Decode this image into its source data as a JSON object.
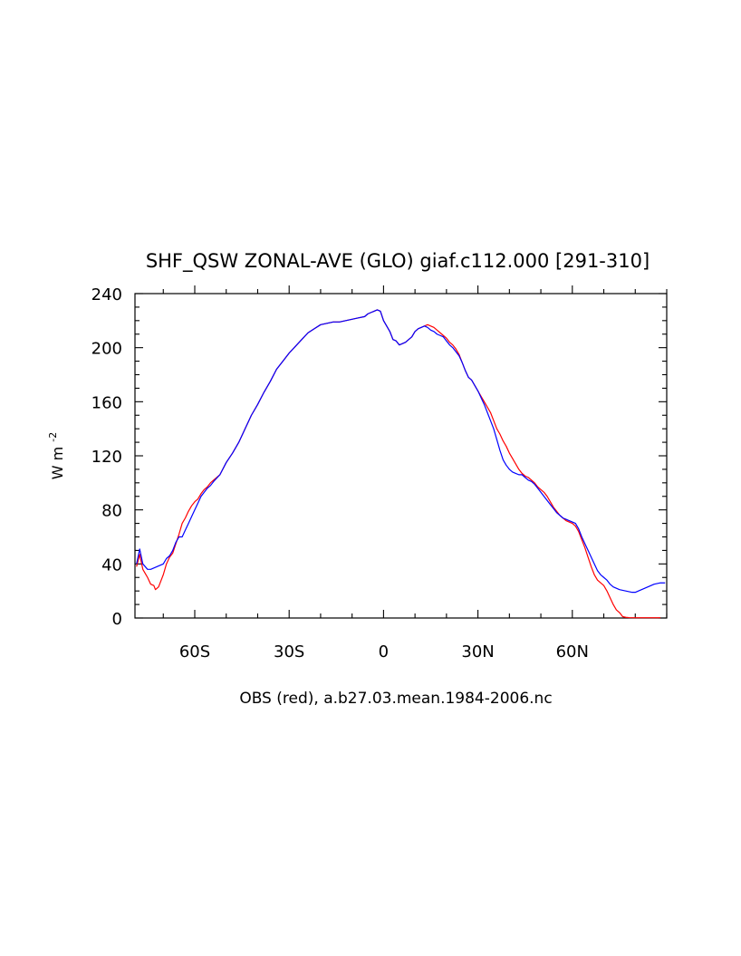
{
  "chart_data": {
    "type": "line",
    "title": "SHF_QSW ZONAL-AVE (GLO) giaf.c112.000 [291-310]",
    "xlabel": "OBS (red), a.b27.03.mean.1984-2006.nc",
    "ylabel": "W m",
    "ylabel_superscript": "-2",
    "xlim": [
      -79,
      90
    ],
    "ylim": [
      0,
      240
    ],
    "x_ticks": [
      {
        "value": -60,
        "label": "60S"
      },
      {
        "value": -30,
        "label": "30S"
      },
      {
        "value": 0,
        "label": "0"
      },
      {
        "value": 30,
        "label": "30N"
      },
      {
        "value": 60,
        "label": "60N"
      }
    ],
    "x_minor_step": 10,
    "y_ticks": [
      0,
      40,
      80,
      120,
      160,
      200,
      240
    ],
    "y_minor_step": 10,
    "grid": false,
    "legend": "none",
    "series": [
      {
        "color": "#ff0000",
        "points": [
          [
            -78.5,
            38
          ],
          [
            -77.5,
            47
          ],
          [
            -76.5,
            36
          ],
          [
            -75,
            30
          ],
          [
            -74,
            25
          ],
          [
            -73,
            24
          ],
          [
            -72.5,
            21
          ],
          [
            -71.5,
            23
          ],
          [
            -70,
            32
          ],
          [
            -69,
            40
          ],
          [
            -68,
            45
          ],
          [
            -67,
            48
          ],
          [
            -66,
            55
          ],
          [
            -65,
            62
          ],
          [
            -64,
            70
          ],
          [
            -63,
            74
          ],
          [
            -62,
            79
          ],
          [
            -61,
            83
          ],
          [
            -60,
            86
          ],
          [
            -59,
            88
          ],
          [
            -58,
            92
          ],
          [
            -57,
            95
          ],
          [
            -56,
            97
          ],
          [
            -55,
            100
          ],
          [
            -54,
            102
          ],
          [
            -52,
            106
          ],
          [
            -50,
            115
          ],
          [
            -48,
            122
          ],
          [
            -46,
            130
          ],
          [
            -44,
            140
          ],
          [
            -42,
            150
          ],
          [
            -40,
            158
          ],
          [
            -38,
            167
          ],
          [
            -36,
            175
          ],
          [
            -34,
            184
          ],
          [
            -32,
            190
          ],
          [
            -30,
            196
          ],
          [
            -28,
            201
          ],
          [
            -26,
            206
          ],
          [
            -24,
            211
          ],
          [
            -22,
            214
          ],
          [
            -20,
            217
          ],
          [
            -18,
            218
          ],
          [
            -16,
            219
          ],
          [
            -14,
            219
          ],
          [
            -12,
            220
          ],
          [
            -10,
            221
          ],
          [
            -8,
            222
          ],
          [
            -6,
            223
          ],
          [
            -5,
            225
          ],
          [
            -4,
            226
          ],
          [
            -3,
            227
          ],
          [
            -2,
            228
          ],
          [
            -1,
            227
          ],
          [
            0,
            220
          ],
          [
            1,
            216
          ],
          [
            2,
            212
          ],
          [
            3,
            206
          ],
          [
            4,
            205
          ],
          [
            5,
            202
          ],
          [
            6,
            203
          ],
          [
            7,
            204
          ],
          [
            8,
            206
          ],
          [
            9,
            208
          ],
          [
            10,
            212
          ],
          [
            11,
            214
          ],
          [
            12,
            215
          ],
          [
            13,
            216
          ],
          [
            14,
            217
          ],
          [
            15,
            216
          ],
          [
            16,
            215
          ],
          [
            17,
            213
          ],
          [
            18,
            211
          ],
          [
            19,
            209
          ],
          [
            20,
            207
          ],
          [
            21,
            204
          ],
          [
            22,
            202
          ],
          [
            23,
            199
          ],
          [
            24,
            195
          ],
          [
            25,
            189
          ],
          [
            26,
            183
          ],
          [
            27,
            178
          ],
          [
            28,
            176
          ],
          [
            29,
            172
          ],
          [
            30,
            168
          ],
          [
            31,
            164
          ],
          [
            32,
            160
          ],
          [
            33,
            156
          ],
          [
            34,
            152
          ],
          [
            35,
            146
          ],
          [
            36,
            140
          ],
          [
            37,
            136
          ],
          [
            38,
            131
          ],
          [
            39,
            127
          ],
          [
            40,
            122
          ],
          [
            41,
            118
          ],
          [
            42,
            114
          ],
          [
            43,
            110
          ],
          [
            44,
            107
          ],
          [
            45,
            105
          ],
          [
            46,
            104
          ],
          [
            47,
            102
          ],
          [
            48,
            100
          ],
          [
            49,
            97
          ],
          [
            50,
            95
          ],
          [
            51,
            93
          ],
          [
            52,
            90
          ],
          [
            53,
            86
          ],
          [
            54,
            82
          ],
          [
            55,
            79
          ],
          [
            56,
            76
          ],
          [
            57,
            74
          ],
          [
            58,
            72
          ],
          [
            59,
            71
          ],
          [
            60,
            70
          ],
          [
            61,
            68
          ],
          [
            62,
            64
          ],
          [
            63,
            58
          ],
          [
            64,
            52
          ],
          [
            65,
            45
          ],
          [
            66,
            38
          ],
          [
            67,
            32
          ],
          [
            68,
            28
          ],
          [
            69,
            26
          ],
          [
            70,
            24
          ],
          [
            71,
            20
          ],
          [
            72,
            15
          ],
          [
            73,
            10
          ],
          [
            74,
            6
          ],
          [
            75,
            4
          ],
          [
            76,
            1
          ],
          [
            77,
            0.5
          ],
          [
            78,
            0.3
          ],
          [
            80,
            0.2
          ],
          [
            82,
            0.2
          ],
          [
            84,
            0.2
          ],
          [
            86,
            0.2
          ],
          [
            88,
            0.2
          ]
        ]
      },
      {
        "color": "#0000ff",
        "points": [
          [
            -78.5,
            40
          ],
          [
            -77.5,
            51
          ],
          [
            -76.5,
            40
          ],
          [
            -75,
            36
          ],
          [
            -74,
            36
          ],
          [
            -73,
            37
          ],
          [
            -72,
            38
          ],
          [
            -71,
            39
          ],
          [
            -70,
            40
          ],
          [
            -69,
            44
          ],
          [
            -68,
            46
          ],
          [
            -67,
            50
          ],
          [
            -66,
            56
          ],
          [
            -65,
            60
          ],
          [
            -64,
            60
          ],
          [
            -63,
            65
          ],
          [
            -62,
            70
          ],
          [
            -61,
            75
          ],
          [
            -60,
            80
          ],
          [
            -59,
            85
          ],
          [
            -58,
            90
          ],
          [
            -57,
            93
          ],
          [
            -56,
            96
          ],
          [
            -55,
            98
          ],
          [
            -54,
            101
          ],
          [
            -52,
            106
          ],
          [
            -50,
            115
          ],
          [
            -48,
            122
          ],
          [
            -46,
            130
          ],
          [
            -44,
            140
          ],
          [
            -42,
            150
          ],
          [
            -40,
            158
          ],
          [
            -38,
            167
          ],
          [
            -36,
            175
          ],
          [
            -34,
            184
          ],
          [
            -32,
            190
          ],
          [
            -30,
            196
          ],
          [
            -28,
            201
          ],
          [
            -26,
            206
          ],
          [
            -24,
            211
          ],
          [
            -22,
            214
          ],
          [
            -20,
            217
          ],
          [
            -18,
            218
          ],
          [
            -16,
            219
          ],
          [
            -14,
            219
          ],
          [
            -12,
            220
          ],
          [
            -10,
            221
          ],
          [
            -8,
            222
          ],
          [
            -6,
            223
          ],
          [
            -5,
            225
          ],
          [
            -4,
            226
          ],
          [
            -3,
            227
          ],
          [
            -2,
            228
          ],
          [
            -1,
            227
          ],
          [
            0,
            220
          ],
          [
            1,
            216
          ],
          [
            2,
            212
          ],
          [
            3,
            206
          ],
          [
            4,
            205
          ],
          [
            5,
            202
          ],
          [
            6,
            203
          ],
          [
            7,
            204
          ],
          [
            8,
            206
          ],
          [
            9,
            208
          ],
          [
            10,
            212
          ],
          [
            11,
            214
          ],
          [
            12,
            215
          ],
          [
            13,
            216
          ],
          [
            14,
            215
          ],
          [
            15,
            213
          ],
          [
            16,
            212
          ],
          [
            17,
            210
          ],
          [
            18,
            209
          ],
          [
            19,
            208
          ],
          [
            20,
            205
          ],
          [
            21,
            202
          ],
          [
            22,
            200
          ],
          [
            23,
            197
          ],
          [
            24,
            194
          ],
          [
            25,
            189
          ],
          [
            26,
            183
          ],
          [
            27,
            178
          ],
          [
            28,
            176
          ],
          [
            29,
            172
          ],
          [
            30,
            168
          ],
          [
            31,
            163
          ],
          [
            32,
            158
          ],
          [
            33,
            152
          ],
          [
            34,
            146
          ],
          [
            35,
            140
          ],
          [
            36,
            132
          ],
          [
            37,
            124
          ],
          [
            38,
            117
          ],
          [
            39,
            113
          ],
          [
            40,
            110
          ],
          [
            41,
            108
          ],
          [
            42,
            107
          ],
          [
            43,
            106
          ],
          [
            44,
            106
          ],
          [
            45,
            104
          ],
          [
            46,
            102
          ],
          [
            47,
            101
          ],
          [
            48,
            99
          ],
          [
            49,
            96
          ],
          [
            50,
            93
          ],
          [
            51,
            90
          ],
          [
            52,
            87
          ],
          [
            53,
            84
          ],
          [
            54,
            81
          ],
          [
            55,
            78
          ],
          [
            56,
            76
          ],
          [
            57,
            74
          ],
          [
            58,
            73
          ],
          [
            59,
            72
          ],
          [
            60,
            71
          ],
          [
            61,
            70
          ],
          [
            62,
            66
          ],
          [
            63,
            60
          ],
          [
            64,
            55
          ],
          [
            65,
            50
          ],
          [
            66,
            45
          ],
          [
            67,
            40
          ],
          [
            68,
            35
          ],
          [
            69,
            32
          ],
          [
            70,
            30
          ],
          [
            71,
            28
          ],
          [
            72,
            25
          ],
          [
            73,
            23
          ],
          [
            74,
            22
          ],
          [
            75,
            21
          ],
          [
            76,
            20.5
          ],
          [
            77,
            20
          ],
          [
            78,
            19.5
          ],
          [
            79,
            19
          ],
          [
            80,
            19
          ],
          [
            81,
            20
          ],
          [
            82,
            21
          ],
          [
            83,
            22
          ],
          [
            84,
            23
          ],
          [
            85,
            24
          ],
          [
            86,
            25
          ],
          [
            87,
            25.5
          ],
          [
            88,
            26
          ],
          [
            89.5,
            26
          ]
        ]
      }
    ]
  }
}
